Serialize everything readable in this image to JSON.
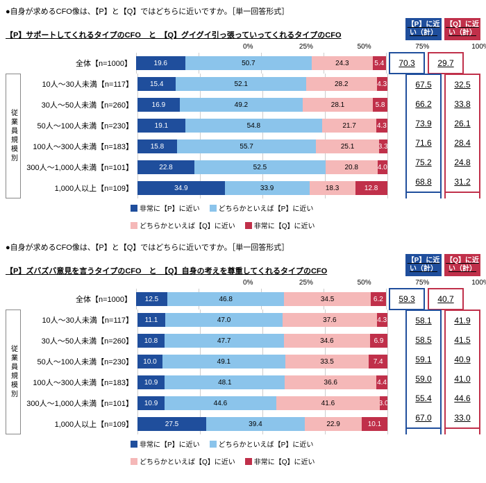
{
  "colors": {
    "s1": "#1f4e9c",
    "s2": "#8bc4eb",
    "s3": "#f5b8b8",
    "s4": "#c0304a",
    "grid": "#cccccc"
  },
  "axis": {
    "min": 0,
    "max": 100,
    "ticks": [
      0,
      25,
      50,
      75,
      100
    ],
    "labels": [
      "0%",
      "25%",
      "50%",
      "75%",
      "100%"
    ]
  },
  "legend": {
    "s1": "非常に【P】に近い",
    "s2": "どちらかといえば【P】に近い",
    "s3": "どちらかといえば【Q】に近い",
    "s4": "非常に【Q】に近い"
  },
  "category_label": "従業員規模別",
  "header": {
    "p": "【P】に近い（計）",
    "q": "【Q】に近い（計）"
  },
  "charts": [
    {
      "title": "●自身が求めるCFO像は、【P】と【Q】ではどちらに近いですか。［単一回答形式］",
      "pq": "【P】サポートしてくれるタイプのCFO　と　【Q】グイグイ引っ張っていってくれるタイプのCFO",
      "overall": {
        "label": "全体【n=1000】",
        "v": [
          19.6,
          50.7,
          24.3,
          5.4
        ],
        "p": 70.3,
        "q": 29.7
      },
      "rows": [
        {
          "label": "10人～30人未満【n=117】",
          "v": [
            15.4,
            52.1,
            28.2,
            4.3
          ],
          "p": 67.5,
          "q": 32.5
        },
        {
          "label": "30人～50人未満【n=260】",
          "v": [
            16.9,
            49.2,
            28.1,
            5.8
          ],
          "p": 66.2,
          "q": 33.8
        },
        {
          "label": "50人～100人未満【n=230】",
          "v": [
            19.1,
            54.8,
            21.7,
            4.3
          ],
          "p": 73.9,
          "q": 26.1
        },
        {
          "label": "100人～300人未満【n=183】",
          "v": [
            15.8,
            55.7,
            25.1,
            3.3
          ],
          "p": 71.6,
          "q": 28.4
        },
        {
          "label": "300人～1,000人未満【n=101】",
          "v": [
            22.8,
            52.5,
            20.8,
            4.0
          ],
          "p": 75.2,
          "q": 24.8
        },
        {
          "label": "1,000人以上【n=109】",
          "v": [
            34.9,
            33.9,
            18.3,
            12.8
          ],
          "p": 68.8,
          "q": 31.2
        }
      ]
    },
    {
      "title": "●自身が求めるCFO像は、【P】と【Q】ではどちらに近いですか。［単一回答形式］",
      "pq": "【P】ズバズバ意見を言うタイプのCFO　と　【Q】自身の考えを尊重してくれるタイプのCFO",
      "overall": {
        "label": "全体【n=1000】",
        "v": [
          12.5,
          46.8,
          34.5,
          6.2
        ],
        "p": 59.3,
        "q": 40.7
      },
      "rows": [
        {
          "label": "10人～30人未満【n=117】",
          "v": [
            11.1,
            47.0,
            37.6,
            4.3
          ],
          "p": 58.1,
          "q": 41.9
        },
        {
          "label": "30人～50人未満【n=260】",
          "v": [
            10.8,
            47.7,
            34.6,
            6.9
          ],
          "p": 58.5,
          "q": 41.5
        },
        {
          "label": "50人～100人未満【n=230】",
          "v": [
            10.0,
            49.1,
            33.5,
            7.4
          ],
          "p": 59.1,
          "q": 40.9
        },
        {
          "label": "100人～300人未満【n=183】",
          "v": [
            10.9,
            48.1,
            36.6,
            4.4
          ],
          "p": 59.0,
          "q": 41.0
        },
        {
          "label": "300人～1,000人未満【n=101】",
          "v": [
            10.9,
            44.6,
            41.6,
            3.0
          ],
          "p": 55.4,
          "q": 44.6
        },
        {
          "label": "1,000人以上【n=109】",
          "v": [
            27.5,
            39.4,
            22.9,
            10.1
          ],
          "p": 67.0,
          "q": 33.0
        }
      ]
    }
  ]
}
